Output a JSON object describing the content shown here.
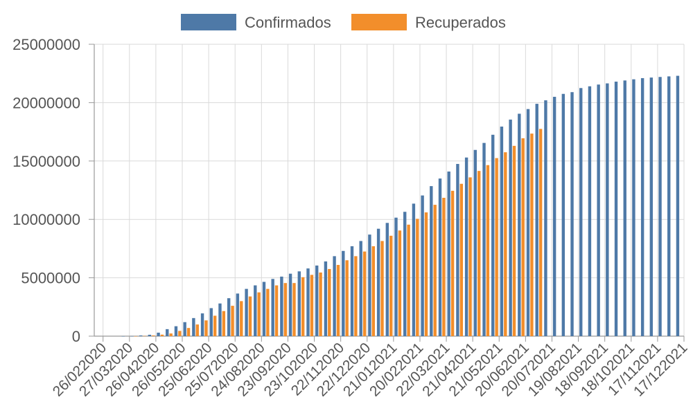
{
  "chart_data": {
    "type": "bar",
    "title": "",
    "xlabel": "",
    "ylabel": "",
    "ylim": [
      0,
      25000000
    ],
    "yticks": [
      0,
      5000000,
      10000000,
      15000000,
      20000000,
      25000000
    ],
    "ytick_labels": [
      "0",
      "5000000",
      "10000000",
      "15000000",
      "20000000",
      "25000000"
    ],
    "xtick_labels": [
      "26/022020",
      "27/032020",
      "26/042020",
      "26/052020",
      "25/062020",
      "25/072020",
      "24/082020",
      "23/092020",
      "23/102020",
      "22/112020",
      "22/122020",
      "21/012021",
      "20/022021",
      "22/032021",
      "21/042021",
      "21/052021",
      "20/062021",
      "20/072021",
      "19/082021",
      "18/092021",
      "18/102021",
      "17/112021",
      "17/122021"
    ],
    "grid": true,
    "legend_position": "top-center",
    "colors": {
      "confirmados": "#4e79a7",
      "recuperados": "#f28e2b",
      "grid": "#d9d9d9",
      "axis": "#999999"
    },
    "series": [
      {
        "name": "Confirmados",
        "values": [
          0,
          0,
          0,
          2000,
          8000,
          60000,
          120000,
          300000,
          600000,
          850000,
          1200000,
          1550000,
          1950000,
          2400000,
          2800000,
          3250000,
          3650000,
          4050000,
          4350000,
          4650000,
          4900000,
          5100000,
          5350000,
          5550000,
          5800000,
          6050000,
          6400000,
          6850000,
          7300000,
          7700000,
          8150000,
          8700000,
          9200000,
          9700000,
          10150000,
          10650000,
          11350000,
          12050000,
          12850000,
          13500000,
          14100000,
          14750000,
          15300000,
          15950000,
          16550000,
          17250000,
          17950000,
          18550000,
          19050000,
          19450000,
          19900000,
          20200000,
          20500000,
          20750000,
          20900000,
          21250000,
          21400000,
          21550000,
          21650000,
          21800000,
          21900000,
          22000000,
          22100000,
          22150000,
          22200000,
          22250000,
          22300000
        ]
      },
      {
        "name": "Recuperados",
        "values": [
          0,
          0,
          0,
          0,
          1000,
          20000,
          60000,
          130000,
          230000,
          450000,
          700000,
          1000000,
          1350000,
          1750000,
          2150000,
          2600000,
          3000000,
          3400000,
          3750000,
          4050000,
          4350000,
          4550000,
          4550000,
          5050000,
          5250000,
          5450000,
          5750000,
          6100000,
          6500000,
          6850000,
          7250000,
          7700000,
          8150000,
          8600000,
          9050000,
          9550000,
          10050000,
          10600000,
          11250000,
          11850000,
          12450000,
          13050000,
          13600000,
          14150000,
          14650000,
          15250000,
          15750000,
          16300000,
          16950000,
          17350000,
          17750000,
          null,
          null,
          null,
          null,
          null,
          null,
          null,
          null,
          null,
          null,
          null,
          null,
          null,
          null,
          null,
          null
        ]
      }
    ]
  }
}
